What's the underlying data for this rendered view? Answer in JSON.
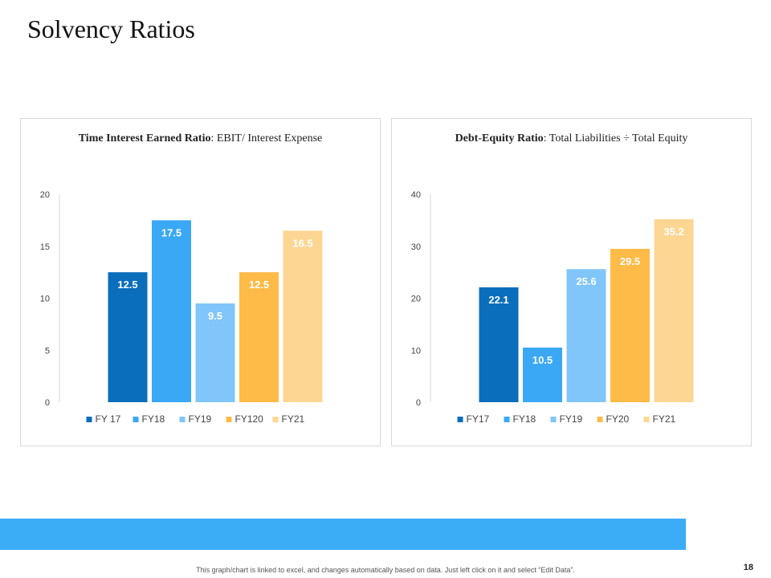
{
  "page": {
    "title": "Solvency Ratios",
    "footnote": "This graph/chart is linked to excel, and changes automatically based on data. Just left click on it and select “Edit Data”.",
    "page_number": "18",
    "band_color": "#3badf7"
  },
  "chart_data": [
    {
      "type": "bar",
      "heading_bold": "Time Interest Earned Ratio",
      "heading_rest": ": EBIT/ Interest Expense",
      "categories": [
        "FY 17",
        "FY18",
        "FY19",
        "FY120",
        "FY21"
      ],
      "values": [
        12.5,
        17.5,
        9.5,
        12.5,
        16.5
      ],
      "value_labels": [
        "12.5",
        "17.5",
        "9.5",
        "12.5",
        "16.5"
      ],
      "colors": [
        "#0a6ebd",
        "#3aa8f5",
        "#80c6fa",
        "#ffbb47",
        "#fdd693"
      ],
      "ylim": [
        0,
        20
      ],
      "yticks": [
        0,
        5,
        10,
        15,
        20
      ],
      "legend_position": "bottom"
    },
    {
      "type": "bar",
      "heading_bold": "Debt-Equity Ratio",
      "heading_rest": ": Total Liabilities ÷ Total Equity",
      "categories": [
        "FY17",
        "FY18",
        "FY19",
        "FY20",
        "FY21"
      ],
      "values": [
        22.1,
        10.5,
        25.6,
        29.5,
        35.2
      ],
      "value_labels": [
        "22.1",
        "10.5",
        "25.6",
        "29.5",
        "35.2"
      ],
      "colors": [
        "#0a6ebd",
        "#3aa8f5",
        "#80c6fa",
        "#ffbb47",
        "#fdd693"
      ],
      "ylim": [
        0,
        40
      ],
      "yticks": [
        0,
        10,
        20,
        30,
        40
      ],
      "legend_position": "bottom"
    }
  ]
}
